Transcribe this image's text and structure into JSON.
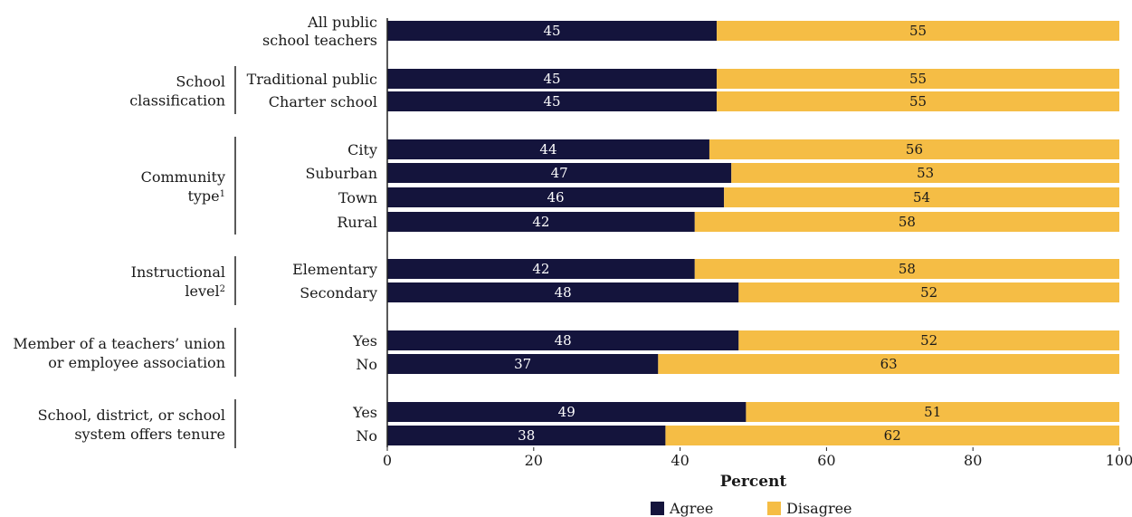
{
  "chart_data": {
    "type": "bar",
    "orientation": "horizontal",
    "stacked": true,
    "xlabel": "Percent",
    "xlim": [
      0,
      100
    ],
    "xticks": [
      0,
      20,
      40,
      60,
      80,
      100
    ],
    "grid": false,
    "legend_position": "bottom",
    "colors": {
      "Agree": "#14143c",
      "Disagree": "#f5bd45"
    },
    "series": [
      {
        "name": "Agree"
      },
      {
        "name": "Disagree"
      }
    ],
    "rows": [
      {
        "label": [
          "All public",
          "school teachers"
        ],
        "agree": 45,
        "disagree": 55,
        "group": null
      },
      {
        "label": [
          "Traditional public"
        ],
        "agree": 45,
        "disagree": 55,
        "group": 0
      },
      {
        "label": [
          "Charter school"
        ],
        "agree": 45,
        "disagree": 55,
        "group": 0
      },
      {
        "label": [
          "City"
        ],
        "agree": 44,
        "disagree": 56,
        "group": 1
      },
      {
        "label": [
          "Suburban"
        ],
        "agree": 47,
        "disagree": 53,
        "group": 1
      },
      {
        "label": [
          "Town"
        ],
        "agree": 46,
        "disagree": 54,
        "group": 1
      },
      {
        "label": [
          "Rural"
        ],
        "agree": 42,
        "disagree": 58,
        "group": 1
      },
      {
        "label": [
          "Elementary"
        ],
        "agree": 42,
        "disagree": 58,
        "group": 2
      },
      {
        "label": [
          "Secondary"
        ],
        "agree": 48,
        "disagree": 52,
        "group": 2
      },
      {
        "label": [
          "Yes"
        ],
        "agree": 48,
        "disagree": 52,
        "group": 3
      },
      {
        "label": [
          "No"
        ],
        "agree": 37,
        "disagree": 63,
        "group": 3
      },
      {
        "label": [
          "Yes"
        ],
        "agree": 49,
        "disagree": 51,
        "group": 4
      },
      {
        "label": [
          "No"
        ],
        "agree": 38,
        "disagree": 62,
        "group": 4
      }
    ],
    "groups": [
      {
        "lines": [
          "School",
          "classification"
        ],
        "superscript": ""
      },
      {
        "lines": [
          "Community",
          "type"
        ],
        "superscript": "1"
      },
      {
        "lines": [
          "Instructional",
          "level"
        ],
        "superscript": "2"
      },
      {
        "lines": [
          "Member of a teachers’ union",
          "or employee association"
        ],
        "superscript": ""
      },
      {
        "lines": [
          "School, district, or school",
          "system offers tenure"
        ],
        "superscript": ""
      }
    ]
  }
}
